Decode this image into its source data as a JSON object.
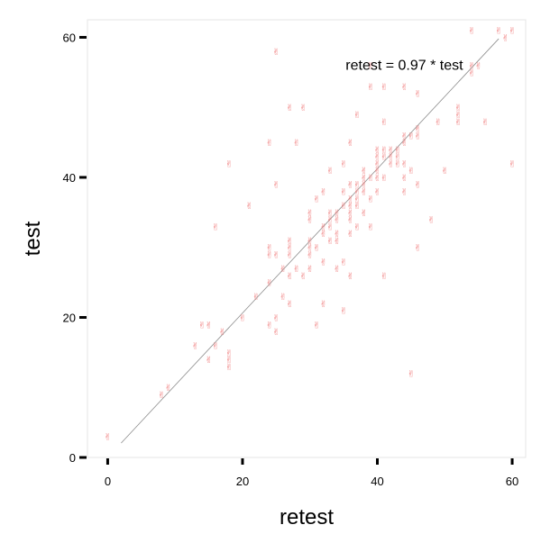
{
  "chart_data": {
    "type": "scatter",
    "title": "",
    "xlabel": "retest",
    "ylabel": "test",
    "xlim": [
      -3,
      62
    ],
    "ylim": [
      0,
      62.5
    ],
    "xticks": [
      0,
      20,
      40,
      60
    ],
    "yticks": [
      0,
      20,
      40,
      60
    ],
    "grid": false,
    "marker_glyph": "✌",
    "annotation": {
      "text": "retest = 0.97 * test",
      "x": 44,
      "y": 56
    },
    "fit_line": {
      "slope": 0.97,
      "x_range": [
        2,
        58
      ]
    },
    "points": [
      [
        0,
        3
      ],
      [
        8,
        9
      ],
      [
        9,
        10
      ],
      [
        13,
        16
      ],
      [
        14,
        19
      ],
      [
        15,
        14
      ],
      [
        15,
        19
      ],
      [
        16,
        16
      ],
      [
        16,
        33
      ],
      [
        17,
        18
      ],
      [
        18,
        13
      ],
      [
        18,
        14
      ],
      [
        18,
        15
      ],
      [
        18,
        42
      ],
      [
        20,
        20
      ],
      [
        21,
        36
      ],
      [
        22,
        23
      ],
      [
        24,
        19
      ],
      [
        24,
        25
      ],
      [
        24,
        29
      ],
      [
        24,
        30
      ],
      [
        24,
        45
      ],
      [
        25,
        18
      ],
      [
        25,
        20
      ],
      [
        25,
        29
      ],
      [
        25,
        39
      ],
      [
        25,
        58
      ],
      [
        26,
        23
      ],
      [
        26,
        27
      ],
      [
        27,
        22
      ],
      [
        27,
        26
      ],
      [
        27,
        29
      ],
      [
        27,
        30
      ],
      [
        27,
        31
      ],
      [
        27,
        50
      ],
      [
        28,
        27
      ],
      [
        28,
        45
      ],
      [
        29,
        26
      ],
      [
        29,
        50
      ],
      [
        30,
        27
      ],
      [
        30,
        29
      ],
      [
        30,
        30
      ],
      [
        30,
        31
      ],
      [
        30,
        34
      ],
      [
        30,
        35
      ],
      [
        31,
        19
      ],
      [
        31,
        30
      ],
      [
        31,
        37
      ],
      [
        32,
        22
      ],
      [
        32,
        28
      ],
      [
        32,
        32
      ],
      [
        32,
        33
      ],
      [
        32,
        38
      ],
      [
        33,
        31
      ],
      [
        33,
        33
      ],
      [
        33,
        34
      ],
      [
        33,
        35
      ],
      [
        33,
        41
      ],
      [
        34,
        27
      ],
      [
        34,
        31
      ],
      [
        34,
        32
      ],
      [
        34,
        34
      ],
      [
        34,
        35
      ],
      [
        35,
        21
      ],
      [
        35,
        28
      ],
      [
        35,
        36
      ],
      [
        35,
        38
      ],
      [
        35,
        42
      ],
      [
        36,
        26
      ],
      [
        36,
        32
      ],
      [
        36,
        34
      ],
      [
        36,
        35
      ],
      [
        36,
        36
      ],
      [
        36,
        37
      ],
      [
        36,
        39
      ],
      [
        36,
        45
      ],
      [
        37,
        33
      ],
      [
        37,
        36
      ],
      [
        37,
        37
      ],
      [
        37,
        38
      ],
      [
        37,
        39
      ],
      [
        37,
        49
      ],
      [
        38,
        35
      ],
      [
        38,
        38
      ],
      [
        38,
        39
      ],
      [
        38,
        40
      ],
      [
        38,
        41
      ],
      [
        39,
        33
      ],
      [
        39,
        37
      ],
      [
        39,
        40
      ],
      [
        39,
        53
      ],
      [
        39,
        56
      ],
      [
        40,
        38
      ],
      [
        40,
        40
      ],
      [
        40,
        41
      ],
      [
        40,
        42
      ],
      [
        40,
        43
      ],
      [
        40,
        44
      ],
      [
        41,
        26
      ],
      [
        41,
        40
      ],
      [
        41,
        43
      ],
      [
        41,
        44
      ],
      [
        41,
        48
      ],
      [
        41,
        53
      ],
      [
        42,
        42
      ],
      [
        42,
        43
      ],
      [
        42,
        44
      ],
      [
        43,
        42
      ],
      [
        43,
        43
      ],
      [
        43,
        44
      ],
      [
        44,
        38
      ],
      [
        44,
        40
      ],
      [
        44,
        42
      ],
      [
        44,
        45
      ],
      [
        44,
        46
      ],
      [
        44,
        53
      ],
      [
        45,
        12
      ],
      [
        45,
        41
      ],
      [
        45,
        46
      ],
      [
        46,
        30
      ],
      [
        46,
        39
      ],
      [
        46,
        46
      ],
      [
        46,
        47
      ],
      [
        46,
        52
      ],
      [
        48,
        34
      ],
      [
        49,
        48
      ],
      [
        50,
        41
      ],
      [
        52,
        48
      ],
      [
        52,
        49
      ],
      [
        52,
        50
      ],
      [
        54,
        55
      ],
      [
        54,
        56
      ],
      [
        54,
        61
      ],
      [
        55,
        56
      ],
      [
        56,
        48
      ],
      [
        58,
        61
      ],
      [
        59,
        60
      ],
      [
        60,
        42
      ],
      [
        60,
        61
      ]
    ]
  }
}
